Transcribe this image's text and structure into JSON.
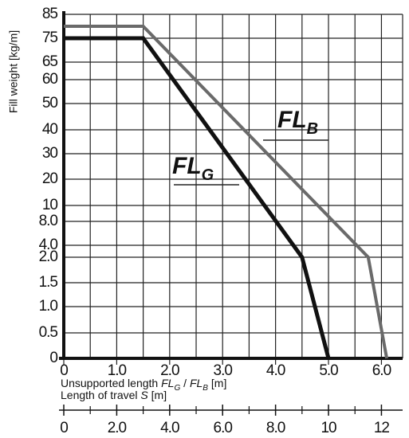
{
  "chart_data": {
    "type": "line",
    "y_label": "Fill weight [kg/m]",
    "x_label": [
      "Unsupported length ",
      "FL",
      "G",
      " / ",
      "FL",
      "B",
      " [m]"
    ],
    "x2_label": [
      "Length of travel ",
      "S",
      " [m]"
    ],
    "series": [
      {
        "name": [
          "FL",
          "B"
        ],
        "color": "#6a6a6a",
        "x": [
          0,
          1.5,
          5.75,
          6.1
        ],
        "values": [
          80,
          80,
          2.0,
          0
        ]
      },
      {
        "name": [
          "FL",
          "G"
        ],
        "color": "#111111",
        "x": [
          0,
          1.5,
          4.5,
          5.0
        ],
        "values": [
          75,
          75,
          2.0,
          0
        ]
      }
    ],
    "xlim": [
      0,
      6.4
    ],
    "xticks": [
      0,
      {
        "value": 1,
        "label": "1.0"
      },
      {
        "value": 2,
        "label": "2.0"
      },
      {
        "value": 3,
        "label": "3.0"
      },
      {
        "value": 4,
        "label": "4.0"
      },
      {
        "value": 5,
        "label": "5.0"
      },
      {
        "value": 6,
        "label": "6.0"
      }
    ],
    "x_minor_ticks": [
      0.5,
      1.5,
      2.5,
      3.5,
      4.5,
      5.5
    ],
    "x2lim": [
      0,
      12.8
    ],
    "x2ticks": [
      0,
      {
        "value": 2,
        "label": "2.0"
      },
      {
        "value": 4,
        "label": "4.0"
      },
      {
        "value": 6,
        "label": "6.0"
      },
      {
        "value": 8,
        "label": "8.0"
      },
      10,
      12
    ],
    "x2_minor_ticks": [
      1,
      3,
      5,
      7,
      9,
      11
    ],
    "yticks": [
      0,
      0.5,
      {
        "value": 1,
        "label": "1.0"
      },
      1.5,
      {
        "value": 2,
        "label": "2.0"
      },
      {
        "value": 4,
        "label": "4.0"
      },
      {
        "value": 8,
        "label": "8.0"
      },
      10,
      20,
      30,
      40,
      50,
      60,
      65,
      75,
      85
    ],
    "grid": true
  }
}
